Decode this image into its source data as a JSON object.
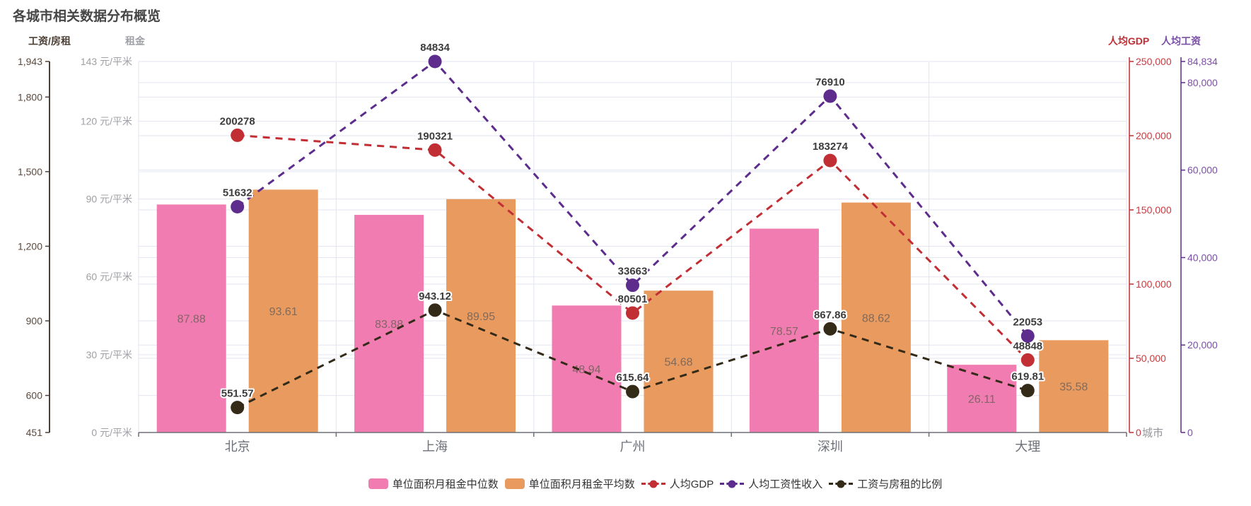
{
  "title": "各城市相关数据分布概览",
  "colors": {
    "pink": "#F17CB1",
    "orange": "#E99A5F",
    "red": "#C12E34",
    "red_label": "#C9393E",
    "purple": "#5D2C8C",
    "purple_label": "#7B4FA6",
    "dark": "#332A18",
    "grid": "#E2E6F0",
    "axis_ratio_line": "#4A4039",
    "axis_ratio_label": "#5B4A3F",
    "axis_rent_label": "#9EA0A5",
    "axis_x_line": "#6E7079",
    "category_label": "#6E7079",
    "bar_label": "#6F6259",
    "point_label": "#3C3C3C"
  },
  "chart_data": {
    "type": "bar+line combo",
    "title": "各城市相关数据分布概览",
    "categories": [
      "北京",
      "上海",
      "广州",
      "深圳",
      "大理"
    ],
    "x_axis_name": "城市",
    "grid": "on",
    "legend_position": "bottom",
    "series": [
      {
        "name": "单位面积月租金中位数",
        "type": "bar",
        "axis": "rent",
        "color": "pink",
        "values": [
          87.88,
          83.88,
          48.94,
          78.57,
          26.11
        ]
      },
      {
        "name": "单位面积月租金平均数",
        "type": "bar",
        "axis": "rent",
        "color": "orange",
        "values": [
          93.61,
          89.95,
          54.68,
          88.62,
          35.58
        ]
      },
      {
        "name": "人均GDP",
        "type": "line",
        "axis": "gdp",
        "color": "red",
        "label_color": "red_label",
        "values": [
          200278,
          190321,
          80501,
          183274,
          48848
        ]
      },
      {
        "name": "人均工资性收入",
        "type": "line",
        "axis": "wage",
        "color": "purple",
        "label_color": "purple_label",
        "values": [
          51632,
          84834,
          33663,
          76910,
          22053
        ]
      },
      {
        "name": "工资与房租的比例",
        "type": "line",
        "axis": "ratio",
        "color": "dark",
        "label_color": "dark",
        "values": [
          551.57,
          943.12,
          615.64,
          867.86,
          619.81
        ]
      }
    ],
    "axes": {
      "ratio": {
        "name": "工资/房租",
        "min": 451,
        "max": 1943,
        "ticks": [
          {
            "v": 1943,
            "label": "1,943"
          },
          {
            "v": 1800,
            "label": "1,800"
          },
          {
            "v": 1500,
            "label": "1,500"
          },
          {
            "v": 1200,
            "label": "1,200"
          },
          {
            "v": 900,
            "label": "900"
          },
          {
            "v": 600,
            "label": "600"
          },
          {
            "v": 451,
            "label": "451"
          }
        ]
      },
      "rent": {
        "name": "租金",
        "min": 0,
        "max": 143,
        "ticks": [
          {
            "v": 143,
            "label": "143 元/平米"
          },
          {
            "v": 120,
            "label": "120 元/平米"
          },
          {
            "v": 90,
            "label": "90 元/平米"
          },
          {
            "v": 60,
            "label": "60 元/平米"
          },
          {
            "v": 30,
            "label": "30 元/平米"
          },
          {
            "v": 0,
            "label": "0 元/平米"
          }
        ]
      },
      "gdp": {
        "name": "人均GDP",
        "min": 0,
        "max": 250000,
        "ticks": [
          {
            "v": 250000,
            "label": "250,000"
          },
          {
            "v": 200000,
            "label": "200,000"
          },
          {
            "v": 150000,
            "label": "150,000"
          },
          {
            "v": 100000,
            "label": "100,000"
          },
          {
            "v": 50000,
            "label": "50,000"
          },
          {
            "v": 0,
            "label": "0"
          }
        ]
      },
      "wage": {
        "name": "人均工资",
        "min": 0,
        "max": 84834,
        "ticks": [
          {
            "v": 84834,
            "label": "84,834"
          },
          {
            "v": 80000,
            "label": "80,000"
          },
          {
            "v": 60000,
            "label": "60,000"
          },
          {
            "v": 40000,
            "label": "40,000"
          },
          {
            "v": 20000,
            "label": "20,000"
          },
          {
            "v": 0,
            "label": "0"
          }
        ]
      }
    }
  },
  "legend": {
    "items": [
      {
        "label": "单位面积月租金中位数",
        "marker": "rect",
        "color": "pink"
      },
      {
        "label": "单位面积月租金平均数",
        "marker": "rect",
        "color": "orange"
      },
      {
        "label": "人均GDP",
        "marker": "line",
        "color": "red"
      },
      {
        "label": "人均工资性收入",
        "marker": "line",
        "color": "purple"
      },
      {
        "label": "工资与房租的比例",
        "marker": "line",
        "color": "dark"
      }
    ]
  }
}
